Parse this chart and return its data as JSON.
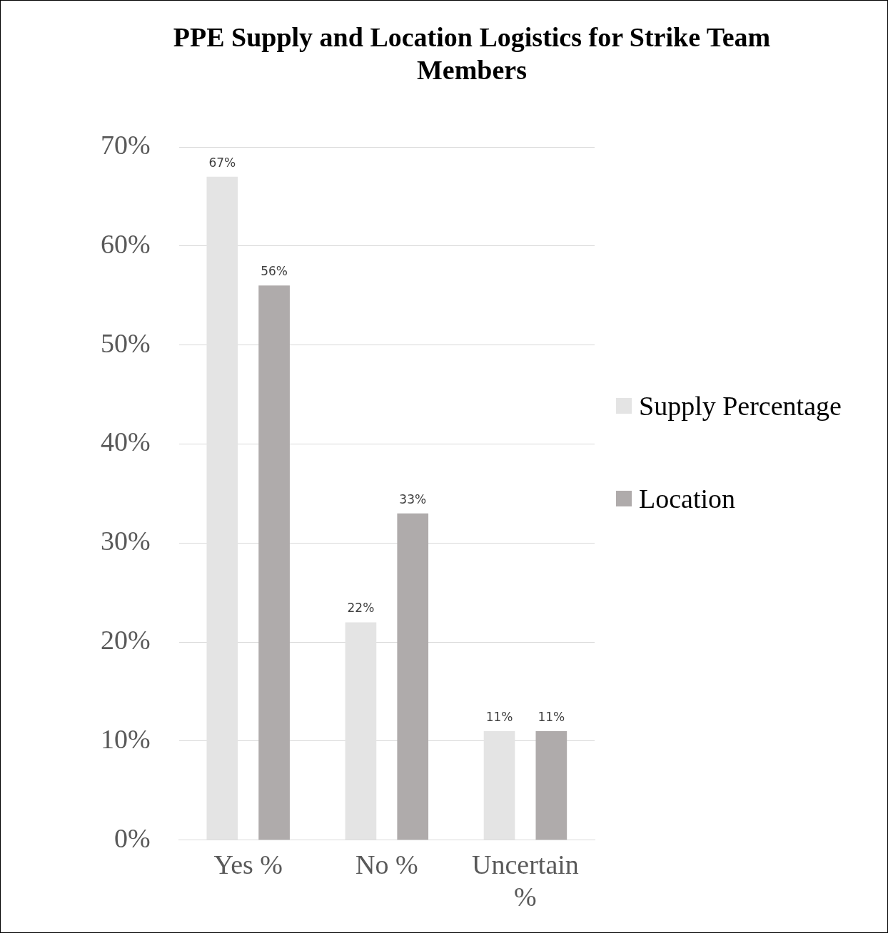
{
  "chart_data": {
    "type": "bar",
    "title": "PPE Supply and Location Logistics for Strike Team Members",
    "categories": [
      "Yes %",
      "No %",
      "Uncertain %"
    ],
    "series": [
      {
        "name": "Supply Percentage",
        "color": "#e4e4e4",
        "values": [
          67,
          22,
          11
        ],
        "value_labels": [
          "67%",
          "22%",
          "11%"
        ]
      },
      {
        "name": "Location",
        "color": "#afabab",
        "values": [
          56,
          33,
          11
        ],
        "value_labels": [
          "56%",
          "33%",
          "11%"
        ]
      }
    ],
    "ylim": [
      0,
      70
    ],
    "yticks": [
      {
        "value": 0,
        "label": "0%"
      },
      {
        "value": 10,
        "label": "10%"
      },
      {
        "value": 20,
        "label": "20%"
      },
      {
        "value": 30,
        "label": "30%"
      },
      {
        "value": 40,
        "label": "40%"
      },
      {
        "value": 50,
        "label": "50%"
      },
      {
        "value": 60,
        "label": "60%"
      },
      {
        "value": 70,
        "label": "70%"
      }
    ],
    "grid": "y",
    "legend": "right"
  }
}
